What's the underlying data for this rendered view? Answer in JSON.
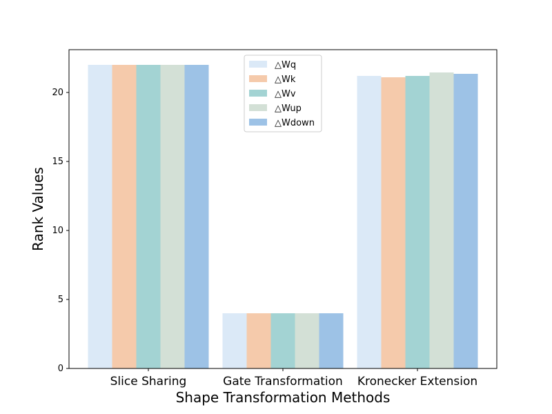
{
  "chart_data": {
    "type": "bar",
    "title": "",
    "xlabel": "Shape Transformation Methods",
    "ylabel": "Rank Values",
    "categories": [
      "Slice Sharing",
      "Gate Transformation",
      "Kronecker Extension"
    ],
    "series": [
      {
        "name": "△Wq",
        "color": "#dbe9f7",
        "values": [
          22,
          4,
          21.2
        ]
      },
      {
        "name": "△Wk",
        "color": "#f5caab",
        "values": [
          22,
          4,
          21.1
        ]
      },
      {
        "name": "△Wv",
        "color": "#a3d3d3",
        "values": [
          22,
          4,
          21.2
        ]
      },
      {
        "name": "△Wup",
        "color": "#d3e0d6",
        "values": [
          22,
          4,
          21.45
        ]
      },
      {
        "name": "△Wdown",
        "color": "#9dc2e6",
        "values": [
          22,
          4,
          21.35
        ]
      }
    ],
    "ylim": [
      0,
      23.1
    ],
    "yticks": [
      0,
      5,
      10,
      15,
      20
    ],
    "legend_position": "top-center",
    "grid": false
  }
}
